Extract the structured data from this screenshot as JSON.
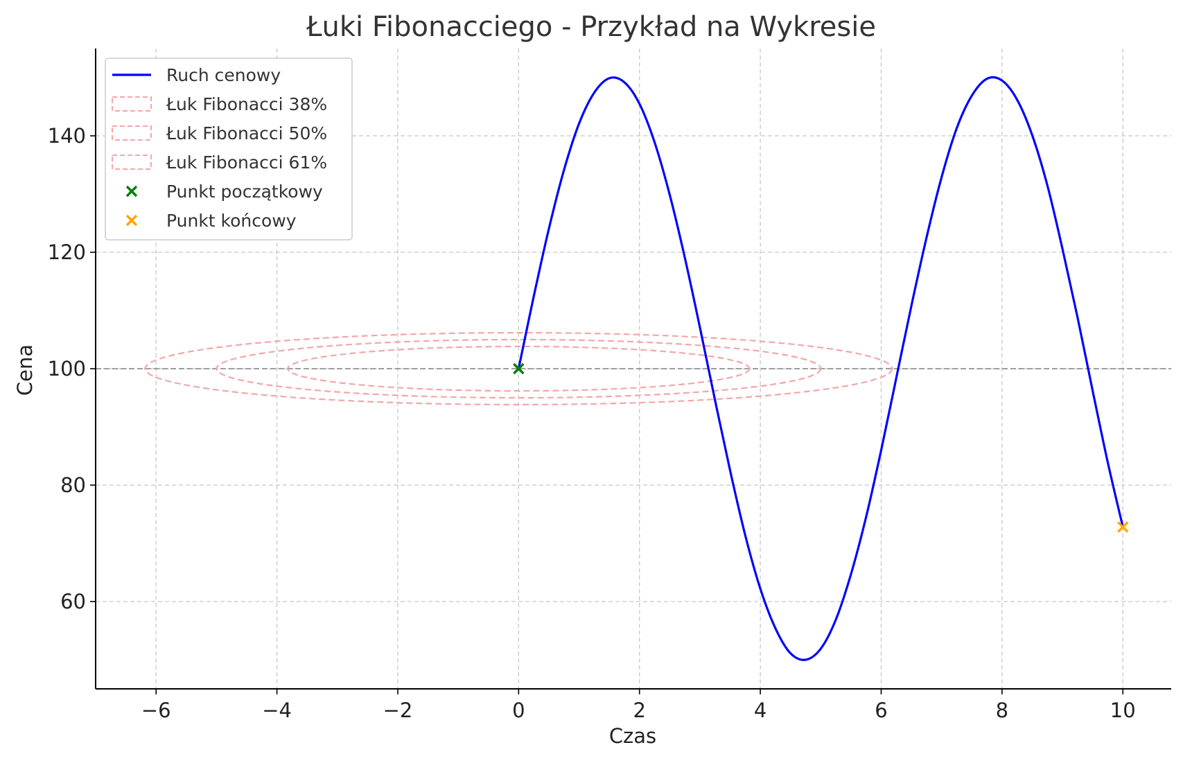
{
  "chart_data": {
    "type": "line",
    "title": "Łuki Fibonacciego - Przykład na Wykresie",
    "xlabel": "Czas",
    "ylabel": "Cena",
    "xlim": [
      -7,
      10.8
    ],
    "ylim": [
      45,
      155
    ],
    "xticks": [
      -6,
      -4,
      -2,
      0,
      2,
      4,
      6,
      8,
      10
    ],
    "xtick_labels": [
      "−6",
      "−4",
      "−2",
      "0",
      "2",
      "4",
      "6",
      "8",
      "10"
    ],
    "yticks": [
      60,
      80,
      100,
      120,
      140
    ],
    "ytick_labels": [
      "60",
      "80",
      "100",
      "120",
      "140"
    ],
    "grid": true,
    "legend_position": "upper-left",
    "reference_line": {
      "y": 100,
      "color": "#808080",
      "style": "dashed"
    },
    "series": [
      {
        "name": "Ruch cenowy",
        "color": "#0000ff",
        "kind": "line",
        "x": [
          0,
          0.25,
          0.5,
          0.75,
          1,
          1.25,
          1.5,
          1.75,
          2,
          2.25,
          2.5,
          2.75,
          3,
          3.25,
          3.5,
          3.75,
          4,
          4.25,
          4.5,
          4.75,
          5,
          5.25,
          5.5,
          5.75,
          6,
          6.25,
          6.5,
          6.75,
          7,
          7.25,
          7.5,
          7.75,
          8,
          8.25,
          8.5,
          8.75,
          9,
          9.25,
          9.5,
          9.75,
          10
        ],
        "y": [
          100,
          112.4,
          124,
          134.1,
          142.1,
          147.4,
          149.9,
          149.2,
          145.5,
          138.9,
          129.9,
          119.1,
          107.1,
          94.6,
          82.5,
          71.4,
          62.2,
          55.4,
          51.1,
          50,
          51.9,
          56.9,
          64.7,
          74.5,
          86,
          98.4,
          110.8,
          122.5,
          132.9,
          141.3,
          146.9,
          149.8,
          149.5,
          146.2,
          140.1,
          131.5,
          120.6,
          108.8,
          96.2,
          83.9,
          72.8
        ]
      }
    ],
    "arcs": [
      {
        "name": "Łuk Fibonacci 38%",
        "center_x": 0,
        "center_y": 100,
        "radius_x": 3.82,
        "radius_y": 3.82,
        "color": "#f4a6a6",
        "style": "dashed"
      },
      {
        "name": "Łuk Fibonacci 50%",
        "center_x": 0,
        "center_y": 100,
        "radius_x": 5,
        "radius_y": 5,
        "color": "#f4a6a6",
        "style": "dashed"
      },
      {
        "name": "Łuk Fibonacci 61%",
        "center_x": 0,
        "center_y": 100,
        "radius_x": 6.18,
        "radius_y": 6.18,
        "color": "#f4a6a6",
        "style": "dashed"
      }
    ],
    "markers": [
      {
        "name": "Punkt początkowy",
        "x": 0,
        "y": 100,
        "color": "#008000",
        "symbol": "x"
      },
      {
        "name": "Punkt końcowy",
        "x": 10,
        "y": 72.8,
        "color": "#ffa500",
        "symbol": "x"
      }
    ]
  }
}
